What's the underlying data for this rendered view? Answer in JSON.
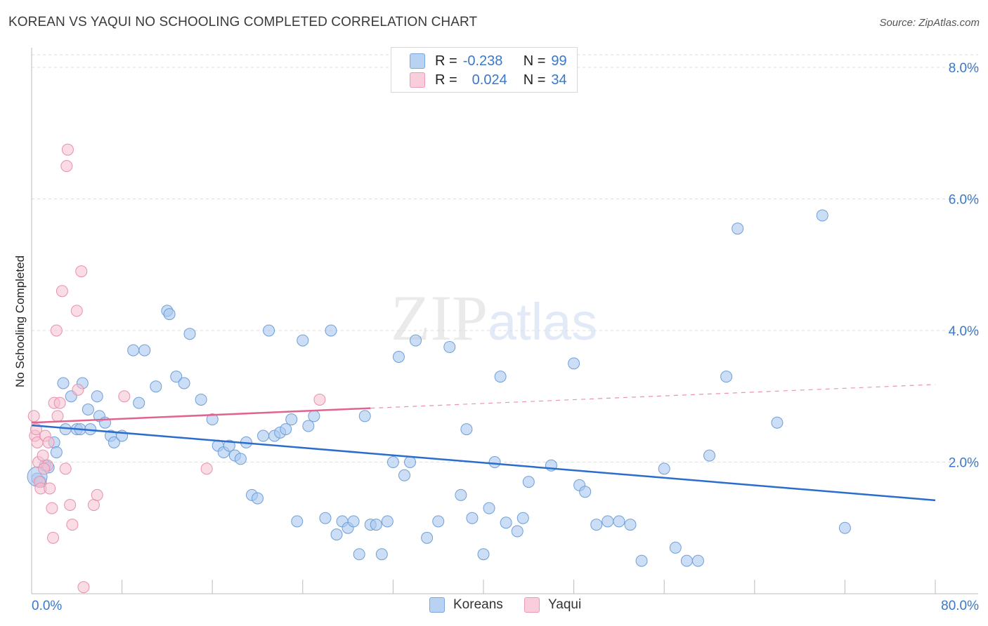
{
  "header": {
    "title": "KOREAN VS YAQUI NO SCHOOLING COMPLETED CORRELATION CHART",
    "source": "Source: ZipAtlas.com"
  },
  "watermark": {
    "zip": "ZIP",
    "atlas": "atlas"
  },
  "legend_top": [
    {
      "r_label": "R =",
      "r_value": "-0.238",
      "n_label": "N =",
      "n_value": "99"
    },
    {
      "r_label": "R =",
      "r_value": "0.024",
      "n_label": "N =",
      "n_value": "34"
    }
  ],
  "legend_bottom": [
    {
      "label": "Koreans"
    },
    {
      "label": "Yaqui"
    }
  ],
  "colors": {
    "koreans_fill": "#a9c8f0",
    "koreans_stroke": "#6f9fd8",
    "koreans_line": "#2b6dcc",
    "yaqui_fill": "#f6bfd0",
    "yaqui_stroke": "#e890ae",
    "yaqui_line": "#e0648f",
    "axis_label": "#3a78c9",
    "grid": "#dcdcdc"
  },
  "chart_data": {
    "type": "scatter",
    "title": "KOREAN VS YAQUI NO SCHOOLING COMPLETED CORRELATION CHART",
    "xlabel": "",
    "ylabel": "No Schooling Completed",
    "xlim": [
      0,
      80
    ],
    "ylim": [
      0,
      8.0
    ],
    "x_tick_labels": [
      "0.0%",
      "80.0%"
    ],
    "y_ticks": [
      2.0,
      4.0,
      6.0,
      8.0
    ],
    "y_tick_labels": [
      "2.0%",
      "4.0%",
      "6.0%",
      "8.0%"
    ],
    "grid": true,
    "legend_position": "top-center",
    "series": [
      {
        "name": "Koreans",
        "r": -0.238,
        "n": 99,
        "trend": {
          "x": [
            0,
            80
          ],
          "y": [
            2.56,
            1.42
          ]
        },
        "points": [
          [
            0.5,
            1.75
          ],
          [
            0.8,
            1.7
          ],
          [
            1.2,
            1.95
          ],
          [
            1.5,
            1.92
          ],
          [
            2.0,
            2.3
          ],
          [
            2.2,
            2.15
          ],
          [
            2.8,
            3.2
          ],
          [
            3.0,
            2.5
          ],
          [
            3.5,
            3.0
          ],
          [
            4.0,
            2.5
          ],
          [
            4.3,
            2.5
          ],
          [
            4.5,
            3.2
          ],
          [
            5.0,
            2.8
          ],
          [
            5.2,
            2.5
          ],
          [
            5.8,
            3.0
          ],
          [
            6.0,
            2.7
          ],
          [
            6.5,
            2.6
          ],
          [
            7.0,
            2.4
          ],
          [
            7.3,
            2.3
          ],
          [
            8.0,
            2.4
          ],
          [
            9.0,
            3.7
          ],
          [
            9.5,
            2.9
          ],
          [
            10.0,
            3.7
          ],
          [
            11.0,
            3.15
          ],
          [
            12.0,
            4.3
          ],
          [
            12.2,
            4.25
          ],
          [
            12.8,
            3.3
          ],
          [
            13.5,
            3.2
          ],
          [
            14.0,
            3.95
          ],
          [
            15.0,
            2.95
          ],
          [
            16.0,
            2.65
          ],
          [
            16.5,
            2.25
          ],
          [
            17.0,
            2.15
          ],
          [
            17.5,
            2.25
          ],
          [
            18.0,
            2.1
          ],
          [
            18.5,
            2.05
          ],
          [
            19.0,
            2.3
          ],
          [
            19.5,
            1.5
          ],
          [
            20.0,
            1.45
          ],
          [
            20.5,
            2.4
          ],
          [
            21.0,
            4.0
          ],
          [
            21.5,
            2.4
          ],
          [
            22.0,
            2.45
          ],
          [
            22.5,
            2.5
          ],
          [
            23.0,
            2.65
          ],
          [
            23.5,
            1.1
          ],
          [
            24.0,
            3.85
          ],
          [
            24.5,
            2.55
          ],
          [
            25.0,
            2.7
          ],
          [
            26.0,
            1.15
          ],
          [
            26.5,
            4.0
          ],
          [
            27.0,
            0.9
          ],
          [
            27.5,
            1.1
          ],
          [
            28.0,
            1.0
          ],
          [
            28.5,
            1.1
          ],
          [
            29.0,
            0.6
          ],
          [
            29.5,
            2.7
          ],
          [
            30.0,
            1.05
          ],
          [
            30.5,
            1.05
          ],
          [
            31.0,
            0.6
          ],
          [
            31.5,
            1.1
          ],
          [
            32.0,
            2.0
          ],
          [
            32.5,
            3.6
          ],
          [
            33.5,
            2.0
          ],
          [
            33.0,
            1.8
          ],
          [
            34.0,
            3.85
          ],
          [
            35.0,
            0.85
          ],
          [
            36.0,
            1.1
          ],
          [
            37.0,
            3.75
          ],
          [
            38.0,
            1.5
          ],
          [
            38.5,
            2.5
          ],
          [
            39.0,
            1.15
          ],
          [
            40.0,
            0.6
          ],
          [
            40.5,
            1.3
          ],
          [
            41.0,
            2.0
          ],
          [
            41.5,
            3.3
          ],
          [
            42.0,
            1.08
          ],
          [
            43.0,
            0.95
          ],
          [
            43.5,
            1.15
          ],
          [
            44.0,
            1.7
          ],
          [
            46.0,
            1.95
          ],
          [
            48.0,
            3.5
          ],
          [
            48.5,
            1.65
          ],
          [
            49.0,
            1.55
          ],
          [
            50.0,
            1.05
          ],
          [
            51.0,
            1.1
          ],
          [
            52.0,
            1.1
          ],
          [
            53.0,
            1.05
          ],
          [
            54.0,
            0.5
          ],
          [
            56.0,
            1.9
          ],
          [
            57.0,
            0.7
          ],
          [
            58.0,
            0.5
          ],
          [
            59.0,
            0.5
          ],
          [
            60.0,
            2.1
          ],
          [
            61.5,
            3.3
          ],
          [
            62.5,
            5.55
          ],
          [
            66.0,
            2.6
          ],
          [
            70.0,
            5.75
          ],
          [
            72.0,
            1.0
          ]
        ]
      },
      {
        "name": "Yaqui",
        "r": 0.024,
        "n": 34,
        "trend": {
          "x": [
            0,
            30
          ],
          "y": [
            2.6,
            2.82
          ]
        },
        "trend_dashed": {
          "x": [
            30,
            80
          ],
          "y": [
            2.82,
            3.18
          ]
        },
        "points": [
          [
            0.2,
            2.7
          ],
          [
            0.3,
            2.4
          ],
          [
            0.4,
            2.5
          ],
          [
            0.5,
            2.3
          ],
          [
            0.6,
            2.0
          ],
          [
            0.7,
            1.7
          ],
          [
            0.8,
            1.6
          ],
          [
            1.0,
            2.1
          ],
          [
            1.2,
            2.4
          ],
          [
            1.4,
            1.95
          ],
          [
            1.5,
            2.3
          ],
          [
            1.6,
            1.6
          ],
          [
            1.8,
            1.3
          ],
          [
            1.9,
            0.85
          ],
          [
            2.0,
            2.9
          ],
          [
            2.2,
            4.0
          ],
          [
            2.3,
            2.7
          ],
          [
            2.5,
            2.9
          ],
          [
            2.7,
            4.6
          ],
          [
            3.0,
            1.9
          ],
          [
            3.1,
            6.5
          ],
          [
            3.2,
            6.75
          ],
          [
            3.4,
            1.35
          ],
          [
            3.6,
            1.05
          ],
          [
            4.0,
            4.3
          ],
          [
            4.1,
            3.1
          ],
          [
            4.4,
            4.9
          ],
          [
            4.6,
            0.1
          ],
          [
            5.5,
            1.35
          ],
          [
            5.8,
            1.5
          ],
          [
            8.2,
            3.0
          ],
          [
            15.5,
            1.9
          ],
          [
            25.5,
            2.95
          ],
          [
            1.1,
            1.9
          ]
        ]
      }
    ]
  }
}
